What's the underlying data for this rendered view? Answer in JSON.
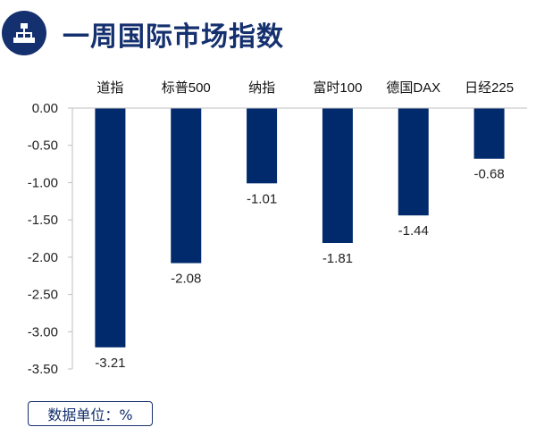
{
  "header": {
    "title": "一周国际市场指数",
    "icon": "org-chart-icon"
  },
  "colors": {
    "brand": "#15306e",
    "bar": "#002a6c",
    "axis": "#bfbfbf"
  },
  "unit_note": "数据单位：%",
  "chart_data": {
    "type": "bar",
    "categories": [
      "道指",
      "标普500",
      "纳指",
      "富时100",
      "德国DAX",
      "日经225"
    ],
    "values": [
      -3.21,
      -2.08,
      -1.01,
      -1.81,
      -1.44,
      -0.68
    ],
    "value_labels": [
      "-3.21",
      "-2.08",
      "-1.01",
      "-1.81",
      "-1.44",
      "-0.68"
    ],
    "y_ticks": [
      "0.00",
      "-0.50",
      "-1.00",
      "-1.50",
      "-2.00",
      "-2.50",
      "-3.00",
      "-3.50"
    ],
    "ylim": [
      -3.5,
      0
    ],
    "category_axis_position": "top",
    "grid": false,
    "legend": "none"
  }
}
